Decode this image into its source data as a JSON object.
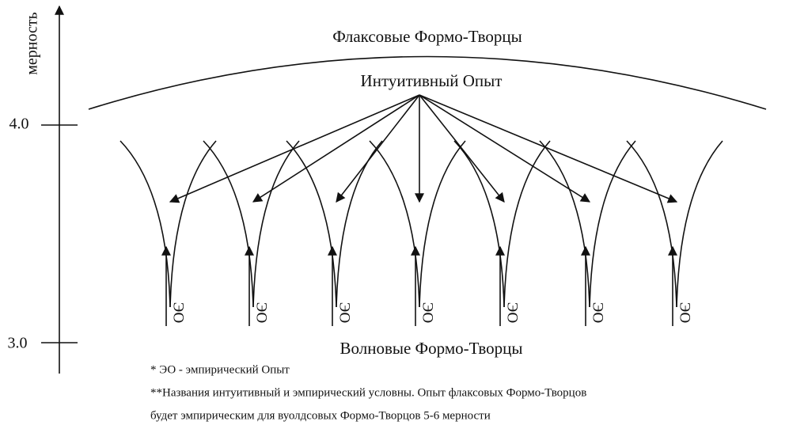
{
  "axis": {
    "label": "мерность",
    "ticks": [
      "4.0",
      "3.0"
    ]
  },
  "top_title": "Флаксовые Формо-Творцы",
  "center_label": "Интуитивный Опыт",
  "eo_labels": [
    "ЭО",
    "ЭО",
    "ЭО",
    "ЭО",
    "ЭО",
    "ЭО",
    "ЭО"
  ],
  "bottom_title": "Волновые Формо-Творцы",
  "footnotes": [
    "* ЭО - эмпирический Опыт",
    "**Названия интуитивный и эмпирический условны. Опыт флаксовых Формо-Творцов",
    "будет эмпирическим для вуолдсовых Формо-Творцов 5-6 мерности"
  ]
}
